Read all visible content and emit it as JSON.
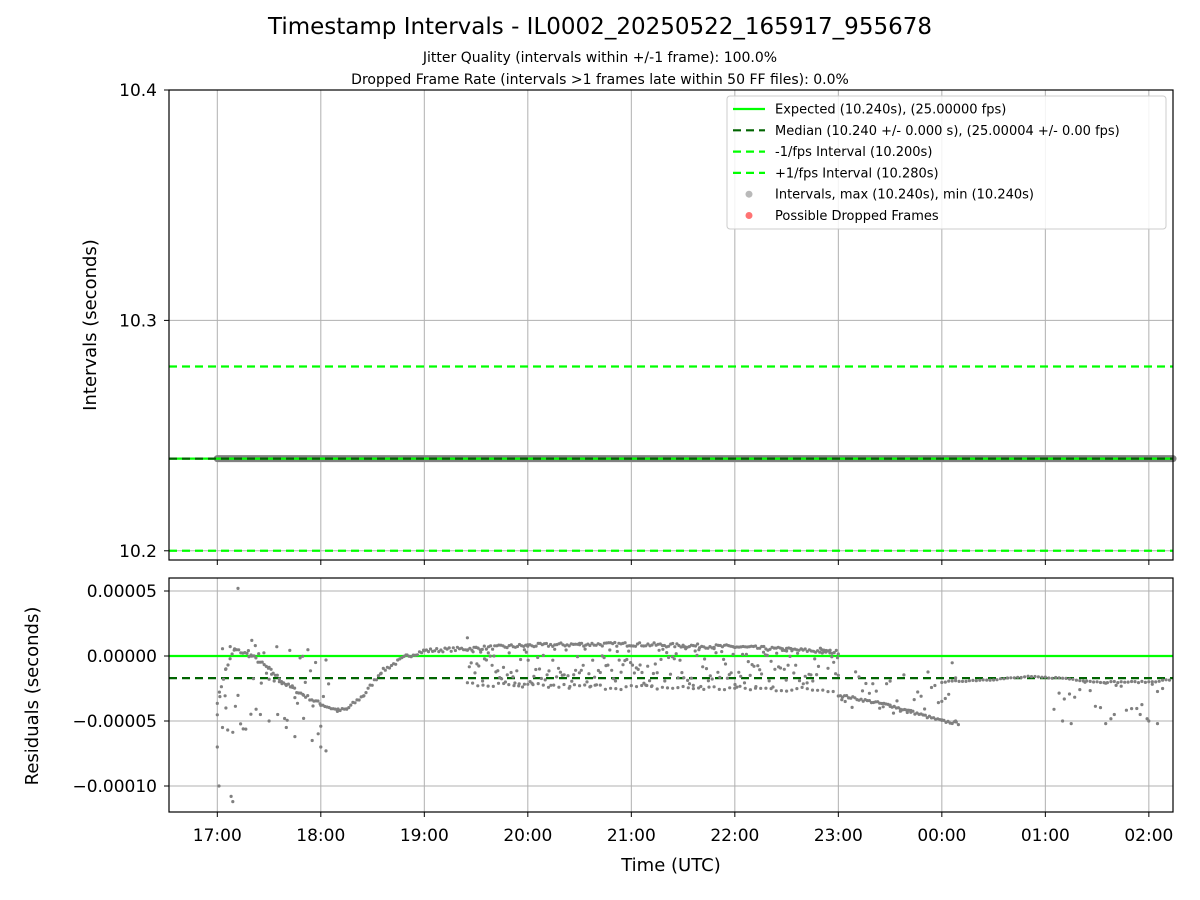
{
  "header": {
    "title": "Timestamp Intervals - IL0002_20250522_165917_955678",
    "subtitle_1": "Jitter Quality (intervals within +/-1 frame): 100.0%",
    "subtitle_2": "Dropped Frame Rate (intervals >1 frames late within 50 FF files): 0.0%"
  },
  "colors": {
    "expected": "#00ff00",
    "median": "#006400",
    "interval_band": "#00ff00",
    "intervals": "#808080",
    "dropped": "#ff0000",
    "grid": "#b0b0b0"
  },
  "chart_data": [
    {
      "type": "scatter",
      "name": "intervals",
      "xlabel": "",
      "ylabel": "Intervals (seconds)",
      "xlim": [
        "16:32",
        "02:14"
      ],
      "ylim": [
        10.196,
        10.4
      ],
      "y_ticks": [
        "10.2",
        "10.3",
        "10.4"
      ],
      "y_tick_values": [
        10.2,
        10.3,
        10.4
      ],
      "x_ticks": [
        "17:00",
        "18:00",
        "19:00",
        "20:00",
        "21:00",
        "22:00",
        "23:00",
        "00:00",
        "01:00",
        "02:00"
      ],
      "grid": true,
      "legend_position": "top-right",
      "legend": [
        {
          "label": "Expected (10.240s), (25.00000 fps)",
          "style": "solid",
          "color": "#00ff00"
        },
        {
          "label": "Median (10.240 +/- 0.000 s), (25.00004 +/- 0.00 fps)",
          "style": "dashed",
          "color": "#006400"
        },
        {
          "label": "-1/fps Interval (10.200s)",
          "style": "dashed",
          "color": "#00ff00"
        },
        {
          "label": "+1/fps Interval (10.280s)",
          "style": "dashed",
          "color": "#00ff00"
        },
        {
          "label": "Intervals, max (10.240s), min (10.240s)",
          "style": "marker",
          "color": "#808080"
        },
        {
          "label": "Possible Dropped Frames",
          "style": "marker",
          "color": "#ff0000"
        }
      ],
      "hlines": [
        {
          "series": "expected",
          "y": 10.24
        },
        {
          "series": "median",
          "y": 10.24
        },
        {
          "series": "minus_1fps",
          "y": 10.2
        },
        {
          "series": "plus_1fps",
          "y": 10.28
        }
      ],
      "intervals": {
        "x_start": "17:00",
        "x_end": "02:14",
        "y": 10.24
      },
      "dropped_frames": []
    },
    {
      "type": "scatter",
      "name": "residuals",
      "xlabel": "Time (UTC)",
      "ylabel": "Residuals (seconds)",
      "xlim": [
        "16:32",
        "02:14"
      ],
      "ylim": [
        -0.00012,
        6e-05
      ],
      "y_ticks": [
        "0.00005",
        "0.00000",
        "−0.00005",
        "−0.00010"
      ],
      "y_tick_values": [
        5e-05,
        0.0,
        -5e-05,
        -0.0001
      ],
      "x_ticks": [
        "17:00",
        "18:00",
        "19:00",
        "20:00",
        "21:00",
        "22:00",
        "23:00",
        "00:00",
        "01:00",
        "02:00"
      ],
      "grid": true,
      "hlines": [
        {
          "series": "expected",
          "y": 0.0
        },
        {
          "series": "median",
          "y": -1.7e-05
        }
      ],
      "trend": [
        {
          "t": "17:00",
          "y": -3.5e-05
        },
        {
          "t": "17:05",
          "y": -1e-05
        },
        {
          "t": "17:10",
          "y": 5e-06
        },
        {
          "t": "17:20",
          "y": 0.0
        },
        {
          "t": "17:30",
          "y": -1e-05
        },
        {
          "t": "17:40",
          "y": -2.2e-05
        },
        {
          "t": "17:50",
          "y": -3e-05
        },
        {
          "t": "18:00",
          "y": -3.7e-05
        },
        {
          "t": "18:10",
          "y": -4.2e-05
        },
        {
          "t": "18:15",
          "y": -4.1e-05
        },
        {
          "t": "18:25",
          "y": -3e-05
        },
        {
          "t": "18:35",
          "y": -1.2e-05
        },
        {
          "t": "18:50",
          "y": 0.0
        },
        {
          "t": "19:00",
          "y": 4e-06
        },
        {
          "t": "19:30",
          "y": 6e-06
        },
        {
          "t": "20:00",
          "y": 8e-06
        },
        {
          "t": "20:30",
          "y": 9e-06
        },
        {
          "t": "21:00",
          "y": 9e-06
        },
        {
          "t": "21:30",
          "y": 8e-06
        },
        {
          "t": "22:00",
          "y": 7e-06
        },
        {
          "t": "22:30",
          "y": 5e-06
        },
        {
          "t": "23:00",
          "y": 3e-06
        }
      ],
      "lower_band": [
        {
          "t": "19:25",
          "y": -2.2e-05
        },
        {
          "t": "20:00",
          "y": -2.3e-05
        },
        {
          "t": "21:00",
          "y": -2.4e-05
        },
        {
          "t": "22:00",
          "y": -2.5e-05
        },
        {
          "t": "23:00",
          "y": -2.6e-05
        }
      ],
      "drift": [
        {
          "t": "23:00",
          "y": -3e-05
        },
        {
          "t": "23:30",
          "y": -3.8e-05
        },
        {
          "t": "00:00",
          "y": -5e-05
        },
        {
          "t": "00:10",
          "y": -5.2e-05
        }
      ],
      "flat_tail": [
        {
          "t": "00:00",
          "y": -2e-05
        },
        {
          "t": "00:30",
          "y": -1.8e-05
        },
        {
          "t": "00:50",
          "y": -1.6e-05
        },
        {
          "t": "01:10",
          "y": -1.7e-05
        },
        {
          "t": "01:30",
          "y": -2e-05
        },
        {
          "t": "02:00",
          "y": -2e-05
        },
        {
          "t": "02:14",
          "y": -1.8e-05
        }
      ],
      "scattered": [
        {
          "t": "17:00",
          "y": -7e-05
        },
        {
          "t": "17:01",
          "y": -0.0001
        },
        {
          "t": "17:08",
          "y": -0.000108
        },
        {
          "t": "17:09",
          "y": -0.000112
        },
        {
          "t": "17:12",
          "y": 5.2e-05
        },
        {
          "t": "17:05",
          "y": -4e-05
        },
        {
          "t": "17:03",
          "y": -5.5e-05
        },
        {
          "t": "17:20",
          "y": 1.2e-05
        },
        {
          "t": "17:22",
          "y": 8e-06
        },
        {
          "t": "17:25",
          "y": -4.5e-05
        },
        {
          "t": "17:30",
          "y": -5e-05
        },
        {
          "t": "17:40",
          "y": -5.5e-05
        },
        {
          "t": "17:45",
          "y": -6.2e-05
        },
        {
          "t": "17:55",
          "y": -6.5e-05
        },
        {
          "t": "18:00",
          "y": -7e-05
        },
        {
          "t": "18:03",
          "y": -7.3e-05
        },
        {
          "t": "17:35",
          "y": -4.5e-05
        },
        {
          "t": "17:50",
          "y": -4.8e-05
        },
        {
          "t": "19:25",
          "y": 1.4e-05
        },
        {
          "t": "00:08",
          "y": -5e-05
        },
        {
          "t": "01:10",
          "y": -5e-05
        },
        {
          "t": "01:15",
          "y": -5.2e-05
        },
        {
          "t": "01:35",
          "y": -5.2e-05
        },
        {
          "t": "01:40",
          "y": -4.5e-05
        },
        {
          "t": "01:55",
          "y": -4.5e-05
        },
        {
          "t": "02:00",
          "y": -5e-05
        },
        {
          "t": "02:05",
          "y": -5.2e-05
        }
      ]
    }
  ]
}
